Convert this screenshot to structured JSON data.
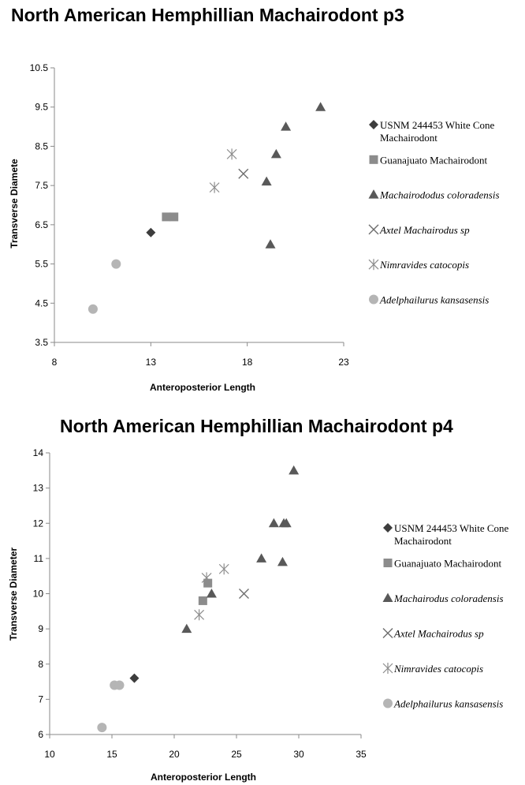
{
  "chart_data": [
    {
      "type": "scatter",
      "title": "North American Hemphillian Machairodont p3",
      "xlabel": "Anteroposterior Length",
      "ylabel": "Transverse Diamete",
      "xlim": [
        8,
        23
      ],
      "ylim": [
        3.5,
        10.5
      ],
      "xticks": [
        "8",
        "13",
        "18",
        "23"
      ],
      "yticks": [
        "3.5",
        "4.5",
        "5.5",
        "6.5",
        "7.5",
        "8.5",
        "9.5",
        "10.5"
      ],
      "xtick_values": [
        8,
        13,
        18,
        23
      ],
      "ytick_values": [
        3.5,
        4.5,
        5.5,
        6.5,
        7.5,
        8.5,
        9.5,
        10.5
      ],
      "grid": false,
      "legend_position": "right",
      "series": [
        {
          "name_lines": [
            "USNM 244453 White Cone",
            "Machairodont"
          ],
          "italic": false,
          "marker": "diamond",
          "color": "#3d3d3d",
          "points": [
            [
              13.0,
              6.3
            ]
          ]
        },
        {
          "name_lines": [
            "Guanajuato Machairodont"
          ],
          "italic": false,
          "marker": "square",
          "color": "#8c8c8c",
          "points": [
            [
              13.8,
              6.7
            ],
            [
              14.2,
              6.7
            ]
          ]
        },
        {
          "name_lines": [
            "Machairododus coloradensis"
          ],
          "italic": true,
          "marker": "triangle",
          "color": "#595959",
          "points": [
            [
              21.8,
              9.5
            ],
            [
              20.0,
              9.0
            ],
            [
              19.5,
              8.3
            ],
            [
              19.0,
              7.6
            ],
            [
              19.2,
              6.0
            ]
          ]
        },
        {
          "name_lines": [
            "Axtel Machairodus sp"
          ],
          "italic": true,
          "marker": "x",
          "color": "#6e6e6e",
          "points": [
            [
              17.8,
              7.8
            ]
          ]
        },
        {
          "name_lines": [
            "Nimravides catocopis"
          ],
          "italic": true,
          "marker": "asterisk",
          "color": "#8c8c8c",
          "points": [
            [
              17.2,
              8.3
            ],
            [
              16.3,
              7.45
            ]
          ]
        },
        {
          "name_lines": [
            "Adelphailurus kansasensis"
          ],
          "italic": true,
          "marker": "circle",
          "color": "#b5b5b5",
          "points": [
            [
              11.2,
              5.5
            ],
            [
              10.0,
              4.35
            ]
          ]
        }
      ]
    },
    {
      "type": "scatter",
      "title": "North American Hemphillian Machairodont p4",
      "xlabel": "Anteroposterior  Length",
      "ylabel": "Transverse Diameter",
      "xlim": [
        10,
        35
      ],
      "ylim": [
        6,
        14
      ],
      "xticks": [
        "10",
        "15",
        "20",
        "25",
        "30",
        "35"
      ],
      "yticks": [
        "6",
        "7",
        "8",
        "9",
        "10",
        "11",
        "12",
        "13",
        "14"
      ],
      "xtick_values": [
        10,
        15,
        20,
        25,
        30,
        35
      ],
      "ytick_values": [
        6,
        7,
        8,
        9,
        10,
        11,
        12,
        13,
        14
      ],
      "grid": false,
      "legend_position": "right",
      "series": [
        {
          "name_lines": [
            "USNM 244453 White Cone",
            "Machairodont"
          ],
          "italic": false,
          "marker": "diamond",
          "color": "#3d3d3d",
          "points": [
            [
              16.8,
              7.6
            ]
          ]
        },
        {
          "name_lines": [
            "Guanajuato Machairodont"
          ],
          "italic": false,
          "marker": "square",
          "color": "#8c8c8c",
          "points": [
            [
              22.3,
              9.8
            ],
            [
              22.7,
              10.3
            ]
          ]
        },
        {
          "name_lines": [
            "Machairodus coloradensis"
          ],
          "italic": true,
          "marker": "triangle",
          "color": "#595959",
          "points": [
            [
              29.6,
              13.5
            ],
            [
              28.0,
              12.0
            ],
            [
              28.8,
              12.0
            ],
            [
              29.0,
              12.0
            ],
            [
              27.0,
              11.0
            ],
            [
              28.7,
              10.9
            ],
            [
              23.0,
              10.0
            ],
            [
              21.0,
              9.0
            ]
          ]
        },
        {
          "name_lines": [
            "Axtel Machairodus sp"
          ],
          "italic": true,
          "marker": "x",
          "color": "#6e6e6e",
          "points": [
            [
              25.6,
              10.0
            ]
          ]
        },
        {
          "name_lines": [
            "Nimravides catocopis"
          ],
          "italic": true,
          "marker": "asterisk",
          "color": "#8c8c8c",
          "points": [
            [
              24.0,
              10.7
            ],
            [
              22.6,
              10.45
            ],
            [
              22.0,
              9.4
            ]
          ]
        },
        {
          "name_lines": [
            "Adelphailurus kansasensis"
          ],
          "italic": true,
          "marker": "circle",
          "color": "#b5b5b5",
          "points": [
            [
              15.2,
              7.4
            ],
            [
              15.6,
              7.4
            ],
            [
              14.2,
              6.2
            ]
          ]
        }
      ]
    }
  ]
}
